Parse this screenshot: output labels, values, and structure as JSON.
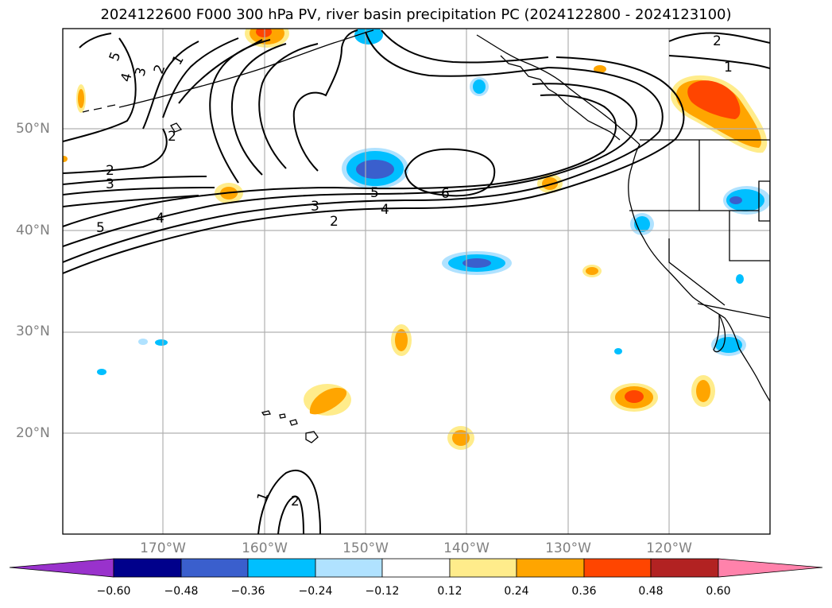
{
  "title": "2024122600 F000 300 hPa PV, river basin precipitation PC (2024122800 - 2024123100)",
  "lat_labels": [
    "50°N",
    "40°N",
    "30°N",
    "20°N"
  ],
  "lon_labels": [
    "170°W",
    "160°W",
    "150°W",
    "140°W",
    "130°W",
    "120°W"
  ],
  "contour_labels": [
    "5",
    "4",
    "3",
    "2",
    "1",
    "2",
    "2",
    "3",
    "5",
    "4",
    "5",
    "6",
    "3",
    "4",
    "2",
    "2",
    "1",
    "1",
    "2"
  ],
  "colorbar": {
    "ticks": [
      "−0.60",
      "−0.48",
      "−0.36",
      "−0.24",
      "−0.12",
      "0.12",
      "0.24",
      "0.36",
      "0.48",
      "0.60"
    ],
    "colors": [
      "#9932cc",
      "#00008b",
      "#3a5fcd",
      "#00bfff",
      "#b0e2ff",
      "#ffffff",
      "#ffec8b",
      "#ffa500",
      "#ff4500",
      "#b22222",
      "#ff82ab"
    ]
  },
  "colors": {
    "map_background": "#ffffff",
    "gridline": "#b0b0b0",
    "contour": "#000000"
  }
}
